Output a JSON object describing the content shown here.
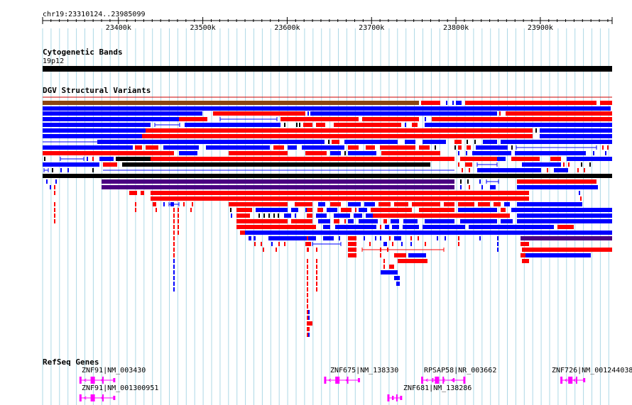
{
  "locus": "chr19:23310124..23985099",
  "ruler": {
    "ticks": [
      {
        "label": "23400k",
        "pos": 23400000
      },
      {
        "label": "23500k",
        "pos": 23500000
      },
      {
        "label": "23600k",
        "pos": 23600000
      },
      {
        "label": "23700k",
        "pos": 23700000
      },
      {
        "label": "23800k",
        "pos": 23800000
      },
      {
        "label": "23900k",
        "pos": 23900000
      }
    ]
  },
  "tracks": {
    "cytoband": {
      "title": "Cytogenetic Bands",
      "band": "19p12"
    },
    "dgv": {
      "title": "DGV Structural Variants"
    },
    "refseq": {
      "title": "RefSeq Genes",
      "genes": [
        {
          "label": "ZNF91|NM_003430",
          "start": 23355000,
          "end": 23395000
        },
        {
          "label": "ZNF91|NM_001300951",
          "start": 23355000,
          "end": 23395000
        },
        {
          "label": "ZNF675|NM_138330",
          "start": 23645000,
          "end": 23685000
        },
        {
          "label": "ZNF681|NM_138286",
          "start": 23720000,
          "end": 23735000
        },
        {
          "label": "RPSAP58|NR_003662",
          "start": 23760000,
          "end": 23810000
        },
        {
          "label": "ZNF726|NM_001244038",
          "start": 23925000,
          "end": 23952000
        }
      ]
    }
  },
  "colors": {
    "gain": "#ff0000",
    "loss": "#0000ff",
    "gain_loss": "#8b4513",
    "inversion": "#000000",
    "complex": "#4b0082",
    "gene": "#ff00ff",
    "grid": "#add8e6"
  }
}
